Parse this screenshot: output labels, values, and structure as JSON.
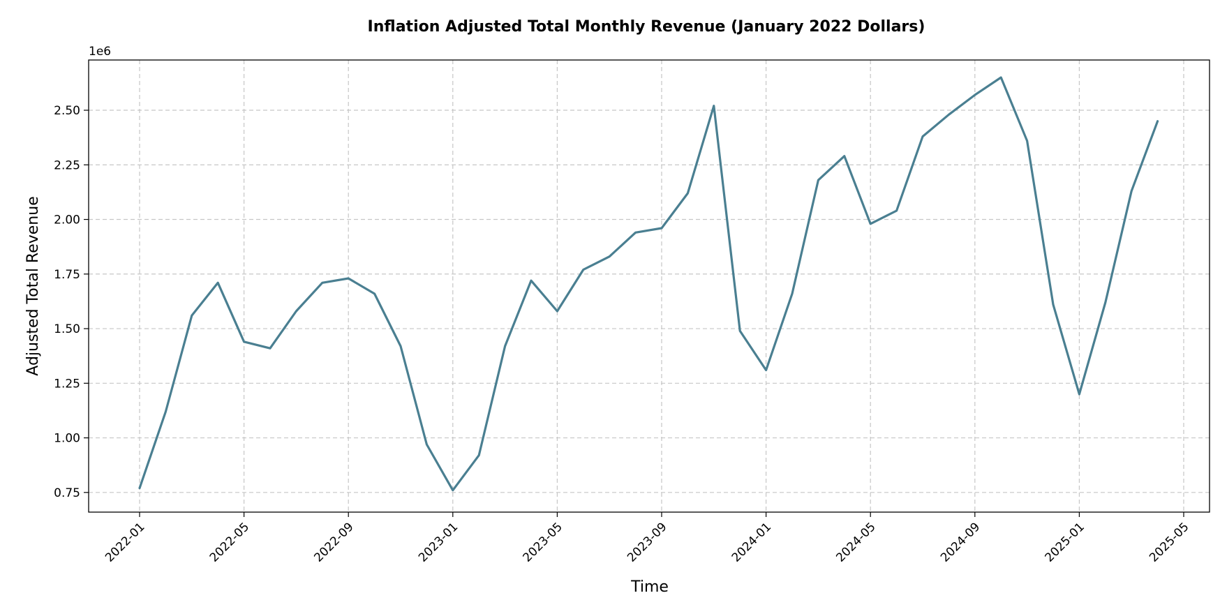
{
  "chart_data": {
    "type": "line",
    "title": "Inflation Adjusted Total Monthly Revenue (January 2022 Dollars)",
    "xlabel": "Time",
    "ylabel": "Adjusted Total Revenue",
    "y_offset_label": "1e6",
    "ylim": [
      0.66,
      2.73
    ],
    "y_ticks": [
      0.75,
      1.0,
      1.25,
      1.5,
      1.75,
      2.0,
      2.25,
      2.5
    ],
    "y_tick_labels": [
      "0.75",
      "1.00",
      "1.25",
      "1.50",
      "1.75",
      "2.00",
      "2.25",
      "2.50"
    ],
    "x_ticks": [
      "2022-01",
      "2022-05",
      "2022-09",
      "2023-01",
      "2023-05",
      "2023-09",
      "2024-01",
      "2024-05",
      "2024-09",
      "2025-01",
      "2025-05"
    ],
    "grid": true,
    "color": "#4a7f91",
    "series": [
      {
        "x": [
          "2022-01",
          "2022-02",
          "2022-03",
          "2022-04",
          "2022-05",
          "2022-06",
          "2022-07",
          "2022-08",
          "2022-09",
          "2022-10",
          "2022-11",
          "2022-12",
          "2023-01",
          "2023-02",
          "2023-03",
          "2023-04",
          "2023-05",
          "2023-06",
          "2023-07",
          "2023-08",
          "2023-09",
          "2023-10",
          "2023-11",
          "2023-12",
          "2024-01",
          "2024-02",
          "2024-03",
          "2024-04",
          "2024-05",
          "2024-06",
          "2024-07",
          "2024-08",
          "2024-09",
          "2024-10",
          "2024-11",
          "2024-12",
          "2025-01",
          "2025-02",
          "2025-03",
          "2025-04"
        ],
        "values": [
          0.77,
          1.12,
          1.56,
          1.71,
          1.44,
          1.41,
          1.58,
          1.71,
          1.73,
          1.66,
          1.42,
          0.97,
          0.76,
          0.92,
          1.42,
          1.72,
          1.58,
          1.77,
          1.83,
          1.94,
          1.96,
          2.12,
          2.52,
          1.49,
          1.31,
          1.66,
          2.18,
          2.29,
          1.98,
          2.04,
          2.38,
          2.48,
          2.57,
          2.65,
          2.36,
          1.61,
          1.2,
          1.62,
          2.13,
          2.45
        ]
      }
    ]
  }
}
